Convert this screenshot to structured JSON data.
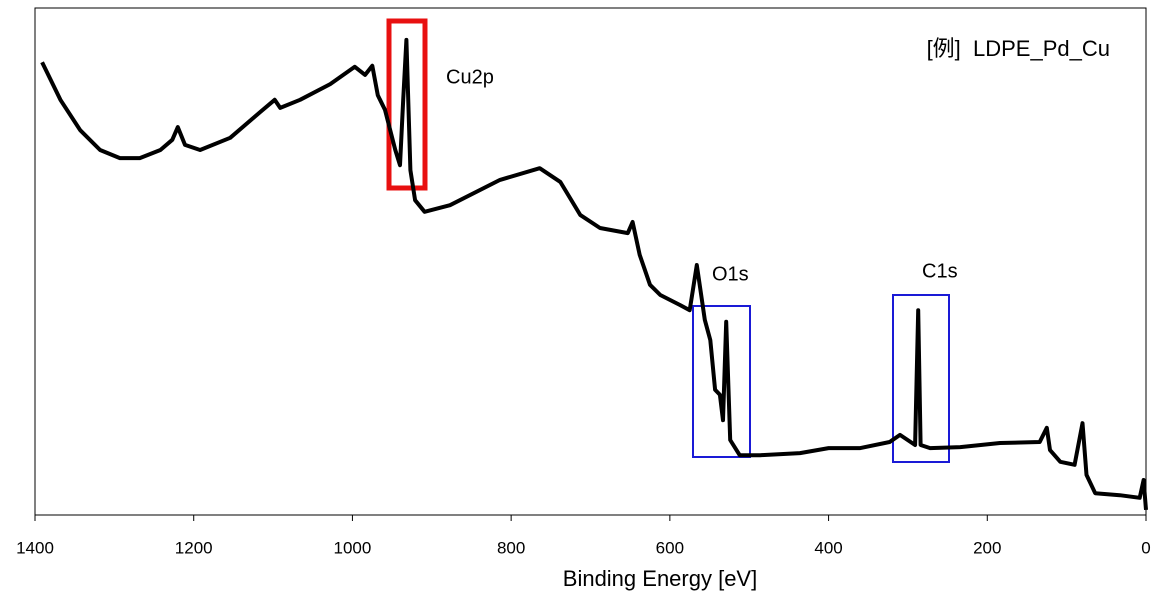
{
  "chart_data": {
    "type": "line",
    "x_label": "Binding Energy [eV]",
    "xlim": [
      1400,
      0
    ],
    "xticks": [
      1400,
      1200,
      1000,
      800,
      600,
      400,
      200,
      0
    ],
    "ylim": [
      0,
      100
    ],
    "legend": "top-right",
    "annotations": [
      "Cu2p",
      "O1s",
      "C1s"
    ],
    "series": [
      {
        "name": "[例]  LDPE_Pd_Cu",
        "color": "#000000",
        "x": [
          1391,
          1368,
          1343,
          1318,
          1293,
          1268,
          1242,
          1227,
          1220,
          1211,
          1192,
          1154,
          1116,
          1098,
          1091,
          1066,
          1028,
          997,
          984,
          975,
          968,
          959,
          946,
          940,
          936,
          932,
          927,
          921,
          909,
          877,
          814,
          764,
          738,
          713,
          688,
          653,
          647,
          638,
          625,
          612,
          587,
          575,
          571,
          566,
          556,
          549,
          543,
          537,
          533,
          529,
          524,
          512,
          486,
          436,
          400,
          360,
          323,
          310,
          291,
          287,
          284,
          272,
          234,
          184,
          134,
          125,
          121,
          108,
          90,
          80,
          75,
          64,
          33,
          8,
          3,
          0
        ],
        "values": [
          89.3,
          81.9,
          75.9,
          72.0,
          70.4,
          70.4,
          72.0,
          74.0,
          76.5,
          73.0,
          72.0,
          74.4,
          79.5,
          81.9,
          80.3,
          81.9,
          85.0,
          88.4,
          86.8,
          88.6,
          82.8,
          79.9,
          72.0,
          69.0,
          81.9,
          93.7,
          68.0,
          62.1,
          59.8,
          61.1,
          66.1,
          68.4,
          65.7,
          59.2,
          56.6,
          55.6,
          57.8,
          51.3,
          45.4,
          43.4,
          41.4,
          40.4,
          44.4,
          49.3,
          38.5,
          34.5,
          24.7,
          23.7,
          18.7,
          38.1,
          14.8,
          11.8,
          11.8,
          12.2,
          13.2,
          13.2,
          14.4,
          15.8,
          13.8,
          40.4,
          13.8,
          13.2,
          13.4,
          14.2,
          14.4,
          17.2,
          12.8,
          10.5,
          9.9,
          18.1,
          7.9,
          4.3,
          3.9,
          3.4,
          6.9,
          1.0
        ]
      }
    ]
  }
}
